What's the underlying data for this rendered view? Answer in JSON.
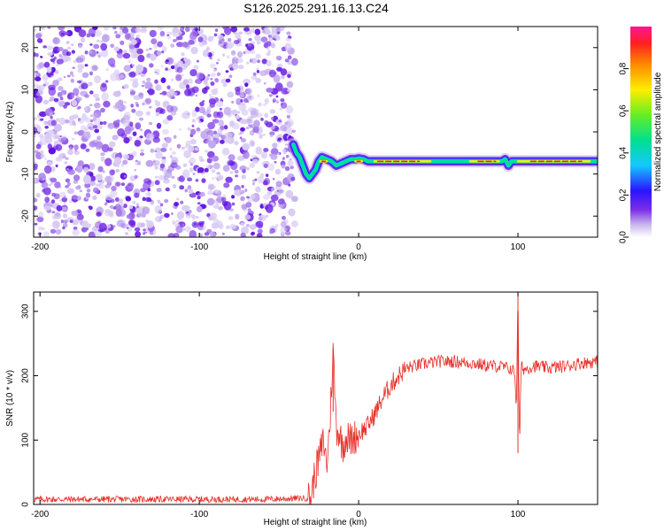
{
  "title": "S126.2025.291.16.13.C24",
  "chart_data": [
    {
      "type": "heatmap",
      "xlabel": "Height of straight line (km)",
      "ylabel": "Frequency (Hz)",
      "xlim": [
        -204,
        150
      ],
      "ylim": [
        -25,
        25
      ],
      "x_ticks": [
        -200,
        -100,
        0,
        100
      ],
      "y_ticks": [
        -20,
        -10,
        0,
        10,
        20
      ],
      "noise_region_x": [
        -204,
        -40
      ],
      "signal_track": [
        [
          -41,
          -3
        ],
        [
          -39,
          -5
        ],
        [
          -37,
          -6
        ],
        [
          -35,
          -8
        ],
        [
          -33,
          -10
        ],
        [
          -31,
          -11
        ],
        [
          -29,
          -10
        ],
        [
          -27,
          -9
        ],
        [
          -25,
          -7
        ],
        [
          -23,
          -6
        ],
        [
          -20,
          -6.5
        ],
        [
          -17,
          -7
        ],
        [
          -14,
          -8
        ],
        [
          -11,
          -7.5
        ],
        [
          -8,
          -7
        ],
        [
          -5,
          -6.5
        ],
        [
          -2,
          -6.5
        ],
        [
          0,
          -6.3
        ],
        [
          3,
          -6.5
        ],
        [
          6,
          -7
        ],
        [
          10,
          -7
        ],
        [
          20,
          -7
        ],
        [
          30,
          -7
        ],
        [
          40,
          -7
        ],
        [
          50,
          -7
        ],
        [
          60,
          -7
        ],
        [
          70,
          -7
        ],
        [
          80,
          -7
        ],
        [
          90,
          -7
        ],
        [
          92,
          -6.5
        ],
        [
          94,
          -8
        ],
        [
          96,
          -7
        ],
        [
          100,
          -7
        ],
        [
          110,
          -7
        ],
        [
          120,
          -7
        ],
        [
          130,
          -7
        ],
        [
          140,
          -7
        ],
        [
          150,
          -7
        ]
      ],
      "colorbar": {
        "label": "Normalized spectral amplitude",
        "range": [
          0,
          1
        ],
        "ticks": [
          "0.0",
          "0.2",
          "0.4",
          "0.6",
          "0.8"
        ]
      }
    },
    {
      "type": "line",
      "xlabel": "Height of straight line (km)",
      "ylabel": "SNR (10 * v/v)",
      "xlim": [
        -204,
        150
      ],
      "ylim": [
        0,
        330
      ],
      "x_ticks": [
        -200,
        -100,
        0,
        100
      ],
      "y_ticks": [
        0,
        100,
        200,
        300
      ],
      "color": "#e8302a",
      "series": [
        {
          "x": [
            -204,
            -150,
            -100,
            -60,
            -30,
            -28,
            -26,
            -24,
            -22,
            -20,
            -18,
            -16,
            -14,
            -12,
            -10,
            -8,
            -5,
            0,
            5,
            10,
            15,
            20,
            25,
            30,
            40,
            50,
            60,
            70,
            80,
            90,
            96,
            98,
            99,
            100,
            101,
            102,
            104,
            110,
            120,
            130,
            140,
            150
          ],
          "values": [
            8,
            8,
            8,
            8,
            10,
            40,
            60,
            80,
            100,
            60,
            130,
            240,
            120,
            110,
            90,
            105,
            100,
            110,
            120,
            140,
            165,
            185,
            200,
            212,
            218,
            222,
            222,
            220,
            216,
            214,
            210,
            205,
            150,
            330,
            80,
            215,
            210,
            215,
            212,
            215,
            220,
            222
          ]
        }
      ]
    }
  ]
}
